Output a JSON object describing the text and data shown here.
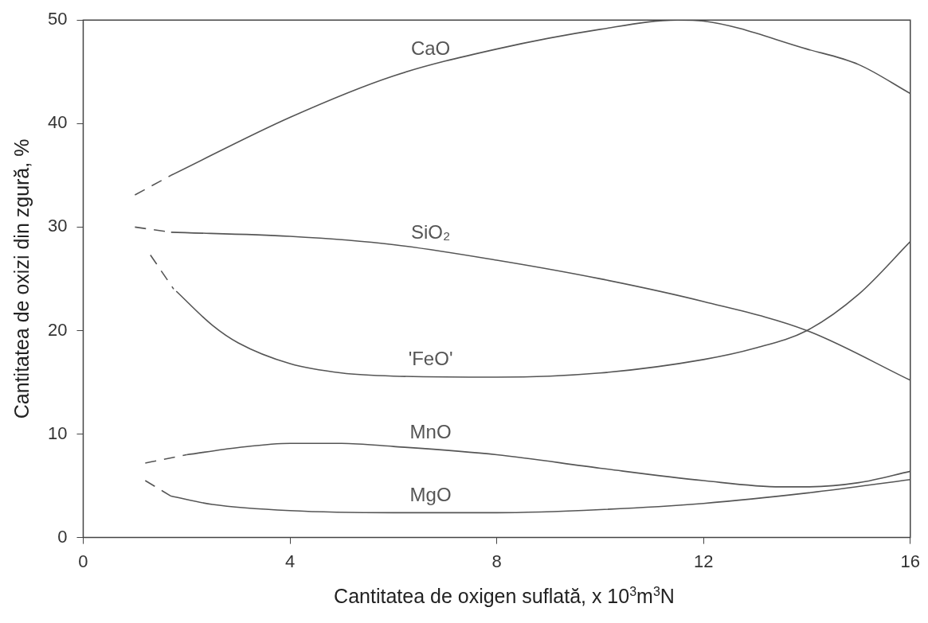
{
  "chart_data": {
    "type": "line",
    "xlabel": "Cantitatea de oxigen suflată, x 10$^{3}$m$^{3}$N",
    "ylabel": "Cantitatea de oxizi din zgură, %",
    "xlim": [
      0,
      16
    ],
    "xticks": [
      0,
      4,
      8,
      12,
      16
    ],
    "ylim": [
      0,
      50
    ],
    "yticks": [
      0,
      10,
      20,
      30,
      40,
      50
    ],
    "grid": false,
    "legend": false,
    "marker": "none",
    "line_style": "solid",
    "series": [
      {
        "color": "#555555",
        "line_style": "dashed",
        "x": [
          1.0,
          1.7
        ],
        "values": [
          33.1,
          35.0
        ]
      },
      {
        "name": "CaO",
        "color": "#555555",
        "x": [
          1.7,
          4,
          6,
          8,
          10,
          11.5,
          12,
          14,
          15,
          16
        ],
        "values": [
          35.0,
          40.6,
          44.6,
          47.2,
          49.1,
          50.0,
          49.9,
          47.2,
          45.7,
          42.9
        ]
      },
      {
        "color": "#555555",
        "line_style": "dashed",
        "x": [
          1.0,
          1.7
        ],
        "values": [
          30.0,
          29.5
        ]
      },
      {
        "name": "SiO₂",
        "color": "#555555",
        "x": [
          1.7,
          4,
          6,
          8,
          10,
          12,
          14,
          16
        ],
        "values": [
          29.5,
          29.1,
          28.3,
          26.8,
          25.0,
          22.8,
          20.0,
          15.2
        ]
      },
      {
        "color": "#555555",
        "line_style": "dashed",
        "x": [
          1.3,
          1.75
        ],
        "values": [
          27.3,
          24.0
        ]
      },
      {
        "name": "'FeO'",
        "color": "#555555",
        "x": [
          1.8,
          2.5,
          3,
          4,
          5,
          6,
          8,
          10,
          12,
          13,
          14,
          15,
          16
        ],
        "values": [
          23.8,
          20.5,
          18.8,
          16.8,
          15.9,
          15.6,
          15.5,
          15.9,
          17.2,
          18.3,
          20.0,
          23.5,
          28.6
        ]
      },
      {
        "color": "#555555",
        "line_style": "dashed",
        "x": [
          1.2,
          2.0
        ],
        "values": [
          7.2,
          8.0
        ]
      },
      {
        "name": "MnO",
        "color": "#555555",
        "x": [
          2,
          3,
          4,
          5,
          6,
          8,
          10,
          12,
          13.5,
          14,
          15,
          16
        ],
        "values": [
          8.0,
          8.7,
          9.1,
          9.1,
          8.8,
          8.0,
          6.7,
          5.5,
          4.9,
          4.9,
          5.3,
          6.4
        ]
      },
      {
        "color": "#555555",
        "line_style": "dashed",
        "x": [
          1.2,
          1.7
        ],
        "values": [
          5.5,
          4.0
        ]
      },
      {
        "name": "MgO",
        "color": "#555555",
        "x": [
          1.7,
          2.5,
          4,
          6,
          8,
          10,
          12,
          14,
          16
        ],
        "values": [
          4.0,
          3.2,
          2.6,
          2.4,
          2.4,
          2.7,
          3.3,
          4.3,
          5.6
        ]
      }
    ]
  }
}
